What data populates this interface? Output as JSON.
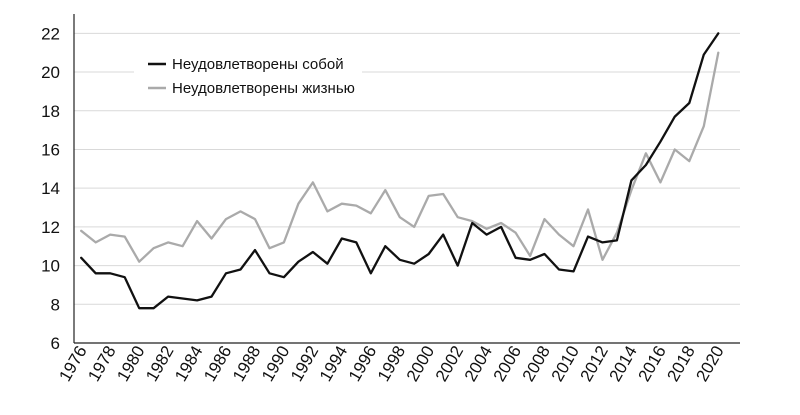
{
  "chart_data": {
    "type": "line",
    "title": "",
    "xlabel": "",
    "ylabel": "",
    "ylim": [
      6,
      23
    ],
    "yticks": [
      6,
      8,
      10,
      12,
      14,
      16,
      18,
      20,
      22
    ],
    "xticks": [
      1976,
      1978,
      1980,
      1982,
      1984,
      1986,
      1988,
      1990,
      1992,
      1994,
      1996,
      1998,
      2000,
      2002,
      2004,
      2006,
      2008,
      2010,
      2012,
      2014,
      2016,
      2018,
      2020
    ],
    "grid": "horizontal",
    "legend_position": "top-left",
    "x": [
      1976,
      1977,
      1978,
      1979,
      1980,
      1981,
      1982,
      1983,
      1984,
      1985,
      1986,
      1987,
      1988,
      1989,
      1990,
      1991,
      1992,
      1993,
      1994,
      1995,
      1996,
      1997,
      1998,
      1999,
      2000,
      2001,
      2002,
      2003,
      2004,
      2005,
      2006,
      2007,
      2008,
      2009,
      2010,
      2011,
      2012,
      2013,
      2014,
      2015,
      2016,
      2017,
      2018,
      2019,
      2020
    ],
    "series": [
      {
        "name": "Неудовлетворены собой",
        "color": "#111111",
        "values": [
          10.4,
          9.6,
          9.6,
          9.4,
          7.8,
          7.8,
          8.4,
          8.3,
          8.2,
          8.4,
          9.6,
          9.8,
          10.8,
          9.6,
          9.4,
          10.2,
          10.7,
          10.1,
          11.4,
          11.2,
          9.6,
          11.0,
          10.3,
          10.1,
          10.6,
          11.6,
          10.0,
          12.2,
          11.6,
          12.0,
          10.4,
          10.3,
          10.6,
          9.8,
          9.7,
          11.5,
          11.2,
          11.3,
          14.4,
          15.2,
          16.4,
          17.7,
          18.4,
          20.9,
          22.0
        ]
      },
      {
        "name": "Неудовлетворены жизнью",
        "color": "#aaaaaa",
        "values": [
          11.8,
          11.2,
          11.6,
          11.5,
          10.2,
          10.9,
          11.2,
          11.0,
          12.3,
          11.4,
          12.4,
          12.8,
          12.4,
          10.9,
          11.2,
          13.2,
          14.3,
          12.8,
          13.2,
          13.1,
          12.7,
          13.9,
          12.5,
          12.0,
          13.6,
          13.7,
          12.5,
          12.3,
          11.9,
          12.2,
          11.7,
          10.5,
          12.4,
          11.6,
          11.0,
          12.9,
          10.3,
          11.7,
          13.9,
          15.8,
          14.3,
          16.0,
          15.4,
          17.2,
          21.0
        ]
      }
    ]
  }
}
